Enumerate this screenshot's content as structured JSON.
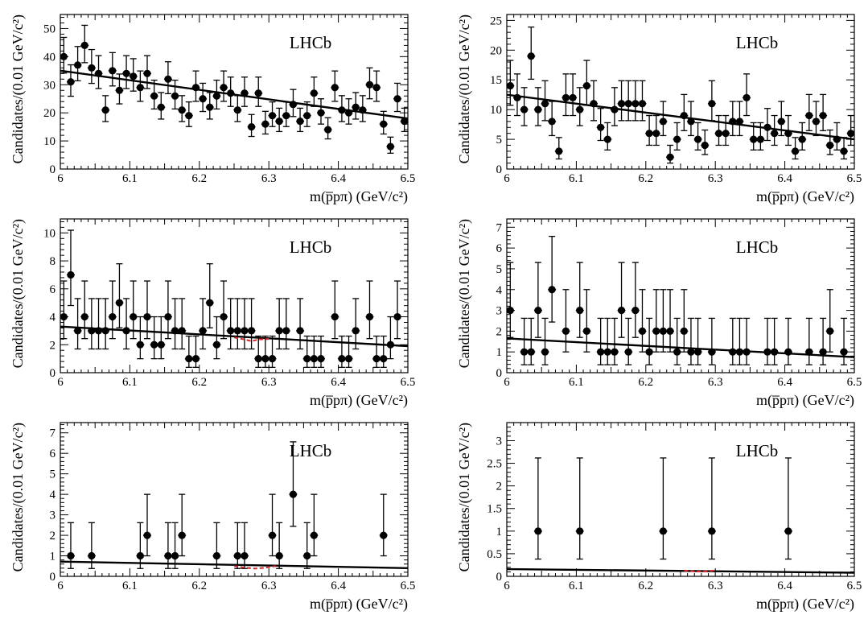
{
  "colors": {
    "data": "#000000",
    "fit": "#000000",
    "signal": "#d62728",
    "frame": "#000000"
  },
  "chart_data": [
    {
      "type": "scatter",
      "title": "LHCb",
      "xlabel": "m(p̅pπ) (GeV/c²)",
      "ylabel": "Candidates/(0.01 GeV/c²)",
      "xlim": [
        6.0,
        6.5
      ],
      "ylim": [
        0,
        55
      ],
      "xticks": [
        6.0,
        6.1,
        6.2,
        6.3,
        6.4,
        6.5
      ],
      "yticks": [
        0,
        10,
        20,
        30,
        40,
        50
      ],
      "xtick_labels": [
        "6",
        "6.1",
        "6.2",
        "6.3",
        "6.4",
        "6.5"
      ],
      "ytick_labels": [
        "0",
        "10",
        "20",
        "30",
        "40",
        "50"
      ],
      "grid": false,
      "series": [
        {
          "kind": "points",
          "x": [
            6.005,
            6.015,
            6.025,
            6.035,
            6.045,
            6.055,
            6.065,
            6.075,
            6.085,
            6.095,
            6.105,
            6.115,
            6.125,
            6.135,
            6.145,
            6.155,
            6.165,
            6.175,
            6.185,
            6.195,
            6.205,
            6.215,
            6.225,
            6.235,
            6.245,
            6.255,
            6.265,
            6.275,
            6.285,
            6.295,
            6.305,
            6.315,
            6.325,
            6.335,
            6.345,
            6.355,
            6.365,
            6.375,
            6.385,
            6.395,
            6.405,
            6.415,
            6.425,
            6.435,
            6.445,
            6.455,
            6.465,
            6.475,
            6.485,
            6.495
          ],
          "y": [
            40,
            31,
            37,
            44,
            36,
            34,
            21,
            35,
            28,
            34,
            33,
            29,
            34,
            26,
            22,
            32,
            26,
            21,
            19,
            29,
            25,
            22,
            26,
            29,
            27,
            21,
            27,
            15,
            27,
            16,
            19,
            17,
            19,
            23,
            17,
            19,
            27,
            20,
            14,
            29,
            21,
            20,
            22,
            21,
            30,
            29,
            16,
            8,
            25,
            17
          ]
        },
        {
          "kind": "fit",
          "x": [
            6.0,
            6.5
          ],
          "y": [
            35,
            18
          ]
        }
      ]
    },
    {
      "type": "scatter",
      "title": "LHCb",
      "xlabel": "m(p̅pπ) (GeV/c²)",
      "ylabel": "Candidates/(0.01 GeV/c²)",
      "xlim": [
        6.0,
        6.5
      ],
      "ylim": [
        0,
        26
      ],
      "xticks": [
        6.0,
        6.1,
        6.2,
        6.3,
        6.4,
        6.5
      ],
      "yticks": [
        0,
        5,
        10,
        15,
        20,
        25
      ],
      "xtick_labels": [
        "6",
        "6.1",
        "6.2",
        "6.3",
        "6.4",
        "6.5"
      ],
      "ytick_labels": [
        "0",
        "5",
        "10",
        "15",
        "20",
        "25"
      ],
      "grid": false,
      "series": [
        {
          "kind": "points",
          "x": [
            6.005,
            6.015,
            6.025,
            6.035,
            6.045,
            6.055,
            6.065,
            6.075,
            6.085,
            6.095,
            6.105,
            6.115,
            6.125,
            6.135,
            6.145,
            6.155,
            6.165,
            6.175,
            6.185,
            6.195,
            6.205,
            6.215,
            6.225,
            6.235,
            6.245,
            6.255,
            6.265,
            6.275,
            6.285,
            6.295,
            6.305,
            6.315,
            6.325,
            6.335,
            6.345,
            6.355,
            6.365,
            6.375,
            6.385,
            6.395,
            6.405,
            6.415,
            6.425,
            6.435,
            6.445,
            6.455,
            6.465,
            6.475,
            6.485,
            6.495
          ],
          "y": [
            14,
            12,
            10,
            19,
            10,
            11,
            8,
            3,
            12,
            12,
            10,
            14,
            11,
            7,
            5,
            10,
            11,
            11,
            11,
            11,
            6,
            6,
            8,
            2,
            5,
            9,
            8,
            5,
            4,
            11,
            6,
            6,
            8,
            8,
            12,
            5,
            5,
            7,
            6,
            8,
            6,
            3,
            5,
            9,
            8,
            9,
            4,
            5,
            3,
            6
          ]
        },
        {
          "kind": "fit",
          "x": [
            6.0,
            6.5
          ],
          "y": [
            12.5,
            5
          ]
        }
      ]
    },
    {
      "type": "scatter",
      "title": "LHCb",
      "xlabel": "m(p̅pπ) (GeV/c²)",
      "ylabel": "Candidates/(0.01 GeV/c²)",
      "xlim": [
        6.0,
        6.5
      ],
      "ylim": [
        0,
        11
      ],
      "xticks": [
        6.0,
        6.1,
        6.2,
        6.3,
        6.4,
        6.5
      ],
      "yticks": [
        0,
        2,
        4,
        6,
        8,
        10
      ],
      "xtick_labels": [
        "6",
        "6.1",
        "6.2",
        "6.3",
        "6.4",
        "6.5"
      ],
      "ytick_labels": [
        "0",
        "2",
        "4",
        "6",
        "8",
        "10"
      ],
      "grid": false,
      "series": [
        {
          "kind": "points",
          "x": [
            6.005,
            6.015,
            6.025,
            6.035,
            6.045,
            6.055,
            6.065,
            6.075,
            6.085,
            6.095,
            6.105,
            6.115,
            6.125,
            6.135,
            6.145,
            6.155,
            6.165,
            6.175,
            6.185,
            6.195,
            6.205,
            6.215,
            6.225,
            6.235,
            6.245,
            6.255,
            6.265,
            6.275,
            6.285,
            6.295,
            6.305,
            6.315,
            6.325,
            6.345,
            6.355,
            6.365,
            6.375,
            6.395,
            6.405,
            6.415,
            6.425,
            6.445,
            6.455,
            6.465,
            6.475,
            6.485
          ],
          "y": [
            4,
            7,
            3,
            4,
            3,
            3,
            3,
            4,
            5,
            3,
            4,
            2,
            4,
            2,
            2,
            4,
            3,
            3,
            1,
            1,
            3,
            5,
            2,
            4,
            3,
            3,
            3,
            3,
            1,
            1,
            1,
            3,
            3,
            3,
            1,
            1,
            1,
            4,
            1,
            1,
            3,
            4,
            1,
            1,
            2,
            4
          ]
        },
        {
          "kind": "fit",
          "x": [
            6.0,
            6.5
          ],
          "y": [
            3.3,
            1.9
          ]
        },
        {
          "kind": "signal",
          "x": [
            6.25,
            6.265,
            6.275,
            6.285,
            6.3
          ],
          "y": [
            2.52,
            2.38,
            2.25,
            2.38,
            2.42
          ]
        }
      ]
    },
    {
      "type": "scatter",
      "title": "LHCb",
      "xlabel": "m(p̅pπ) (GeV/c²)",
      "ylabel": "Candidates/(0.01 GeV/c²)",
      "xlim": [
        6.0,
        6.5
      ],
      "ylim": [
        0,
        7.4
      ],
      "xticks": [
        6.0,
        6.1,
        6.2,
        6.3,
        6.4,
        6.5
      ],
      "yticks": [
        0,
        1,
        2,
        3,
        4,
        5,
        6,
        7
      ],
      "xtick_labels": [
        "6",
        "6.1",
        "6.2",
        "6.3",
        "6.4",
        "6.5"
      ],
      "ytick_labels": [
        "0",
        "1",
        "2",
        "3",
        "4",
        "5",
        "6",
        "7"
      ],
      "grid": false,
      "series": [
        {
          "kind": "points",
          "x": [
            6.005,
            6.025,
            6.035,
            6.045,
            6.055,
            6.065,
            6.085,
            6.105,
            6.115,
            6.135,
            6.145,
            6.155,
            6.165,
            6.175,
            6.185,
            6.195,
            6.205,
            6.215,
            6.225,
            6.235,
            6.245,
            6.255,
            6.265,
            6.275,
            6.295,
            6.325,
            6.335,
            6.345,
            6.375,
            6.385,
            6.405,
            6.435,
            6.455,
            6.465,
            6.485
          ],
          "y": [
            3,
            1,
            1,
            3,
            1,
            4,
            2,
            3,
            2,
            1,
            1,
            1,
            3,
            1,
            3,
            2,
            1,
            2,
            2,
            2,
            1,
            2,
            1,
            1,
            1,
            1,
            1,
            1,
            1,
            1,
            1,
            1,
            1,
            2,
            1
          ]
        },
        {
          "kind": "fit",
          "x": [
            6.0,
            6.5
          ],
          "y": [
            1.65,
            0.75
          ]
        }
      ]
    },
    {
      "type": "scatter",
      "title": "LHCb",
      "xlabel": "m(p̅pπ) (GeV/c²)",
      "ylabel": "Candidates/(0.01 GeV/c²)",
      "xlim": [
        6.0,
        6.5
      ],
      "ylim": [
        0,
        7.5
      ],
      "xticks": [
        6.0,
        6.1,
        6.2,
        6.3,
        6.4,
        6.5
      ],
      "yticks": [
        0,
        1,
        2,
        3,
        4,
        5,
        6,
        7
      ],
      "xtick_labels": [
        "6",
        "6.1",
        "6.2",
        "6.3",
        "6.4",
        "6.5"
      ],
      "ytick_labels": [
        "0",
        "1",
        "2",
        "3",
        "4",
        "5",
        "6",
        "7"
      ],
      "grid": false,
      "series": [
        {
          "kind": "points",
          "x": [
            6.015,
            6.045,
            6.115,
            6.125,
            6.155,
            6.165,
            6.175,
            6.225,
            6.255,
            6.265,
            6.305,
            6.315,
            6.335,
            6.355,
            6.365,
            6.465
          ],
          "y": [
            1,
            1,
            1,
            2,
            1,
            1,
            2,
            1,
            1,
            1,
            2,
            1,
            4,
            1,
            2,
            2
          ]
        },
        {
          "kind": "fit",
          "x": [
            6.0,
            6.5
          ],
          "y": [
            0.72,
            0.4
          ]
        },
        {
          "kind": "signal",
          "x": [
            6.25,
            6.265,
            6.28,
            6.295,
            6.31
          ],
          "y": [
            0.5,
            0.42,
            0.38,
            0.42,
            0.5
          ]
        }
      ]
    },
    {
      "type": "scatter",
      "title": "LHCb",
      "xlabel": "m(p̅pπ) (GeV/c²)",
      "ylabel": "Candidates/(0.01 GeV/c²)",
      "xlim": [
        6.0,
        6.5
      ],
      "ylim": [
        0,
        3.4
      ],
      "xticks": [
        6.0,
        6.1,
        6.2,
        6.3,
        6.4,
        6.5
      ],
      "yticks": [
        0,
        0.5,
        1,
        1.5,
        2,
        2.5,
        3
      ],
      "xtick_labels": [
        "6",
        "6.1",
        "6.2",
        "6.3",
        "6.4",
        "6.5"
      ],
      "ytick_labels": [
        "0",
        "0.5",
        "1",
        "1.5",
        "2",
        "2.5",
        "3"
      ],
      "grid": false,
      "series": [
        {
          "kind": "points",
          "x": [
            6.045,
            6.105,
            6.225,
            6.295,
            6.405
          ],
          "y": [
            1,
            1,
            1,
            1,
            1
          ]
        },
        {
          "kind": "fit",
          "x": [
            6.0,
            6.5
          ],
          "y": [
            0.16,
            0.08
          ]
        },
        {
          "kind": "signal",
          "x": [
            6.255,
            6.27,
            6.285,
            6.3
          ],
          "y": [
            0.13,
            0.11,
            0.11,
            0.13
          ]
        }
      ]
    }
  ]
}
